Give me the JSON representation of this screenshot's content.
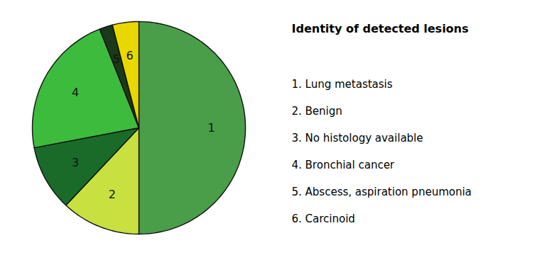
{
  "chart_data": {
    "type": "pie",
    "title": "Identity of detected lesions",
    "categories": [
      "1",
      "2",
      "3",
      "4",
      "5",
      "6"
    ],
    "values": [
      50,
      12,
      10,
      22,
      2,
      4
    ],
    "colors": [
      "#4a9e4a",
      "#c8e040",
      "#1a6b2a",
      "#3dbb3d",
      "#1a3a1a",
      "#e8d800"
    ],
    "annotations": [
      "1. Lung metastasis",
      "2. Benign",
      "3. No histology available",
      "4. Bronchial cancer",
      "5. Abscess, aspiration pneumonia",
      "6. Carcinoid"
    ]
  }
}
